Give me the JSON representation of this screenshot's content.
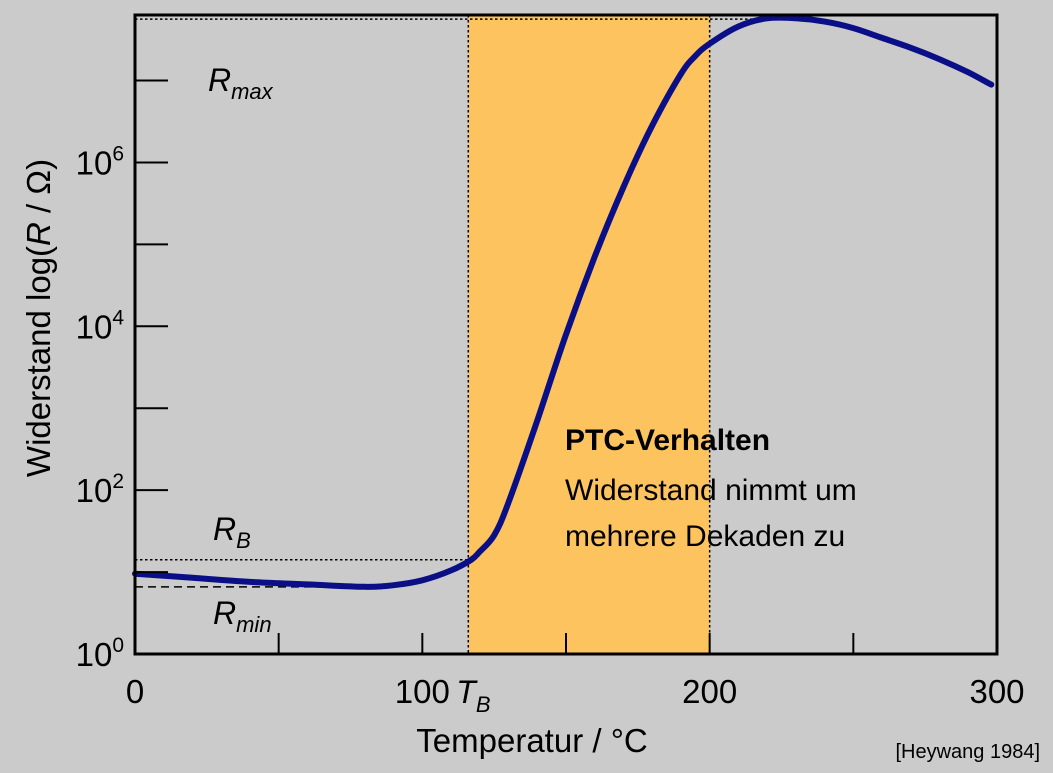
{
  "chart_data": {
    "type": "line",
    "title": "",
    "xlabel": "Temperatur / °C",
    "ylabel": {
      "prefix": "Widerstand log(",
      "var": "R",
      "suffix": " / Ω)"
    },
    "xlim": [
      0,
      300
    ],
    "ylim_log10": [
      0,
      7.8
    ],
    "y_scale": "log",
    "x_tick_values": [
      0,
      50,
      100,
      150,
      200,
      250,
      300
    ],
    "x_tick_labels": [
      {
        "value": 0,
        "text": "0"
      },
      {
        "value": 100,
        "text": "100"
      },
      {
        "value": 200,
        "text": "200"
      },
      {
        "value": 300,
        "text": "300"
      }
    ],
    "y_tick_exponents": [
      0,
      1,
      2,
      3,
      4,
      5,
      6,
      7
    ],
    "y_tick_labels": [
      {
        "exp": 0,
        "base": "10",
        "sup": "0"
      },
      {
        "exp": 2,
        "base": "10",
        "sup": "2"
      },
      {
        "exp": 4,
        "base": "10",
        "sup": "4"
      },
      {
        "exp": 6,
        "base": "10",
        "sup": "6"
      }
    ],
    "series": [
      {
        "color": "#0b0f87",
        "x": [
          0,
          20,
          40,
          60,
          80,
          90,
          100,
          110,
          117,
          120,
          125,
          130,
          140,
          150,
          160,
          170,
          180,
          190,
          195,
          200,
          210,
          220,
          230,
          240,
          250,
          260,
          270,
          280,
          290,
          298
        ],
        "log10_y": [
          0.98,
          0.93,
          0.88,
          0.85,
          0.82,
          0.84,
          0.9,
          1.02,
          1.15,
          1.25,
          1.45,
          1.85,
          2.85,
          3.9,
          4.85,
          5.7,
          6.45,
          7.08,
          7.3,
          7.45,
          7.66,
          7.76,
          7.76,
          7.72,
          7.64,
          7.52,
          7.4,
          7.26,
          7.1,
          6.95
        ]
      }
    ],
    "shaded_region": {
      "x_start": 116,
      "x_end": 200,
      "color": "#fcc35e"
    },
    "reference_lines": {
      "r_max": {
        "log10_y": 7.75,
        "label": "R",
        "sub": "max"
      },
      "r_b": {
        "log10_y": 1.15,
        "label": "R",
        "sub": "B"
      },
      "r_min": {
        "log10_y": 0.82,
        "label": "R",
        "sub": "min"
      },
      "t_b": {
        "x": 116,
        "label": "T",
        "sub": "B"
      }
    },
    "annotation": {
      "title": "PTC-Verhalten",
      "lines": [
        "Widerstand nimmt um",
        "mehrere Dekaden zu"
      ]
    },
    "grid": false,
    "legend": "none"
  },
  "citation": "[Heywang 1984]",
  "colors": {
    "background": "#cbcbcb",
    "curve": "#0b0f87",
    "shade": "#fcc35e",
    "axis": "#000000"
  }
}
